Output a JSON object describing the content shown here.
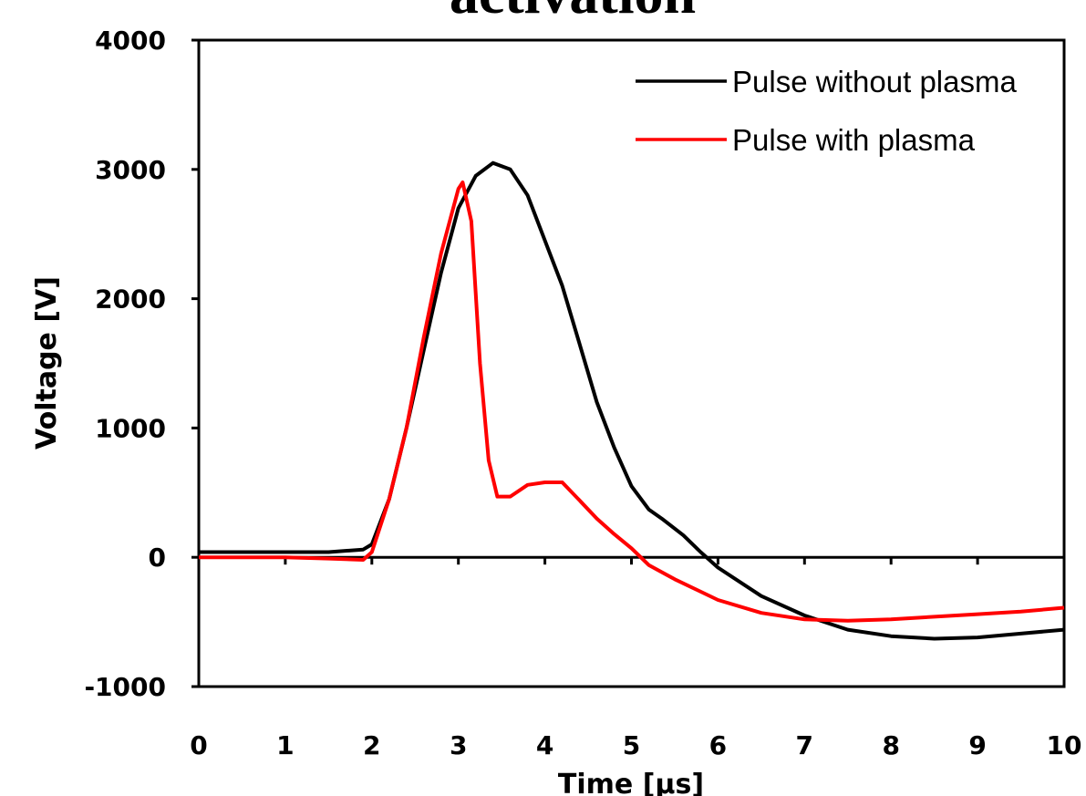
{
  "chart_data": {
    "type": "line",
    "title": "activation",
    "xlabel": "Time [µs]",
    "ylabel": "Voltage [V]",
    "xlim": [
      0,
      10
    ],
    "ylim": [
      -1000,
      4000
    ],
    "x_ticks": [
      "0",
      "1",
      "2",
      "3",
      "4",
      "5",
      "6",
      "7",
      "8",
      "9",
      "10"
    ],
    "y_ticks": [
      "4000",
      "3000",
      "2000",
      "1000",
      "0",
      "-1000"
    ],
    "grid": false,
    "legend_position": "top-right",
    "series": [
      {
        "name": "Pulse without plasma",
        "color": "#000000",
        "points": [
          [
            0,
            40
          ],
          [
            1,
            40
          ],
          [
            1.5,
            40
          ],
          [
            1.9,
            60
          ],
          [
            2.0,
            100
          ],
          [
            2.2,
            450
          ],
          [
            2.4,
            1000
          ],
          [
            2.6,
            1600
          ],
          [
            2.8,
            2200
          ],
          [
            3.0,
            2700
          ],
          [
            3.2,
            2950
          ],
          [
            3.4,
            3050
          ],
          [
            3.6,
            3000
          ],
          [
            3.8,
            2800
          ],
          [
            4.0,
            2450
          ],
          [
            4.2,
            2100
          ],
          [
            4.4,
            1650
          ],
          [
            4.6,
            1200
          ],
          [
            4.8,
            850
          ],
          [
            5.0,
            550
          ],
          [
            5.2,
            370
          ],
          [
            5.35,
            300
          ],
          [
            5.6,
            170
          ],
          [
            5.8,
            40
          ],
          [
            6.0,
            -80
          ],
          [
            6.5,
            -300
          ],
          [
            7.0,
            -450
          ],
          [
            7.5,
            -560
          ],
          [
            8.0,
            -610
          ],
          [
            8.5,
            -630
          ],
          [
            9.0,
            -620
          ],
          [
            9.5,
            -590
          ],
          [
            10.0,
            -560
          ]
        ]
      },
      {
        "name": "Pulse with plasma",
        "color": "#ff0000",
        "points": [
          [
            0,
            0
          ],
          [
            1,
            0
          ],
          [
            1.5,
            -10
          ],
          [
            1.9,
            -20
          ],
          [
            2.0,
            40
          ],
          [
            2.2,
            450
          ],
          [
            2.4,
            1000
          ],
          [
            2.6,
            1700
          ],
          [
            2.8,
            2350
          ],
          [
            3.0,
            2850
          ],
          [
            3.05,
            2900
          ],
          [
            3.15,
            2600
          ],
          [
            3.25,
            1500
          ],
          [
            3.35,
            750
          ],
          [
            3.45,
            470
          ],
          [
            3.6,
            470
          ],
          [
            3.8,
            560
          ],
          [
            4.0,
            580
          ],
          [
            4.2,
            580
          ],
          [
            4.4,
            440
          ],
          [
            4.6,
            300
          ],
          [
            4.8,
            180
          ],
          [
            5.0,
            70
          ],
          [
            5.2,
            -60
          ],
          [
            5.5,
            -170
          ],
          [
            6.0,
            -330
          ],
          [
            6.5,
            -430
          ],
          [
            7.0,
            -480
          ],
          [
            7.5,
            -490
          ],
          [
            8.0,
            -480
          ],
          [
            8.5,
            -460
          ],
          [
            9.0,
            -440
          ],
          [
            9.5,
            -420
          ],
          [
            10.0,
            -390
          ]
        ]
      }
    ]
  }
}
